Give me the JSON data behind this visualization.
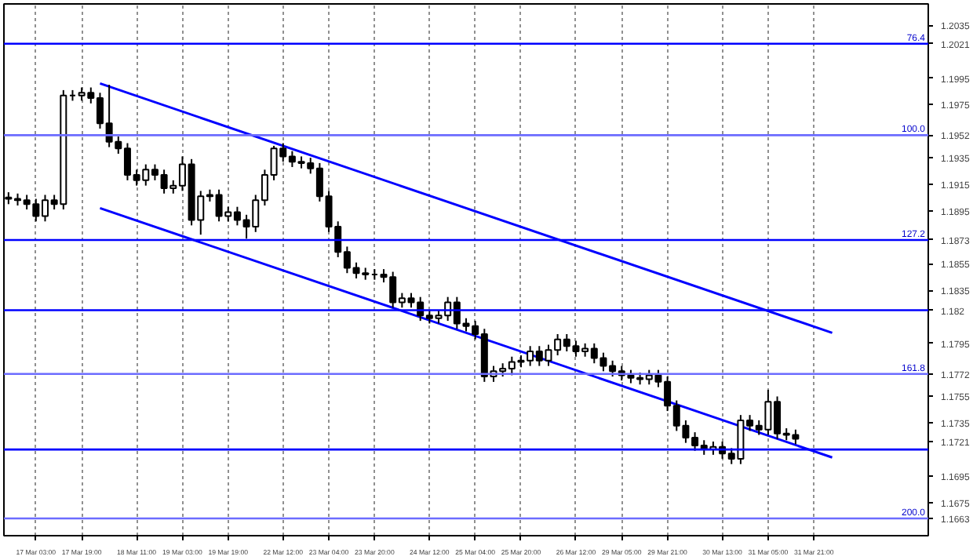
{
  "chart_data": {
    "type": "candlestick",
    "color": "#000000",
    "categories": [
      null,
      null,
      null,
      "17 Mar 03:00",
      null,
      null,
      null,
      null,
      "17 Mar 19:00",
      null,
      null,
      null,
      null,
      null,
      "18 Mar 11:00",
      null,
      null,
      null,
      null,
      "19 Mar 03:00",
      null,
      null,
      null,
      null,
      "19 Mar 19:00",
      null,
      null,
      null,
      null,
      null,
      "22 Mar 12:00",
      null,
      null,
      null,
      null,
      "23 Mar 04:00",
      null,
      null,
      null,
      null,
      "23 Mar 20:00",
      null,
      null,
      null,
      null,
      null,
      "24 Mar 12:00",
      null,
      null,
      null,
      null,
      "25 Mar 04:00",
      null,
      null,
      null,
      null,
      "25 Mar 20:00",
      null,
      null,
      null,
      null,
      null,
      "26 Mar 12:00",
      null,
      null,
      null,
      null,
      "29 Mar 05:00",
      null,
      null,
      null,
      null,
      "29 Mar 21:00",
      null,
      null,
      null,
      null,
      null,
      "30 Mar 13:00",
      null,
      null,
      null,
      null,
      "31 Mar 05:00",
      null,
      null,
      null,
      null,
      "31 Mar 21:00",
      null,
      null,
      null,
      null,
      null,
      null,
      null,
      null,
      null,
      null,
      null,
      null
    ],
    "ohlc": [
      [
        1.1905,
        1.1909,
        1.19,
        1.1904
      ],
      [
        1.1904,
        1.1908,
        1.1899,
        1.1903
      ],
      [
        1.1903,
        1.1907,
        1.1896,
        1.19
      ],
      [
        1.19,
        1.1904,
        1.1887,
        1.1891
      ],
      [
        1.1891,
        1.1907,
        1.1887,
        1.1903
      ],
      [
        1.1903,
        1.1907,
        1.1896,
        1.19
      ],
      [
        1.19,
        1.1986,
        1.1896,
        1.1982
      ],
      [
        1.1982,
        1.1986,
        1.1978,
        1.1982
      ],
      [
        1.1982,
        1.1988,
        1.1978,
        1.1984
      ],
      [
        1.1984,
        1.1988,
        1.1976,
        1.198
      ],
      [
        1.198,
        1.1984,
        1.1957,
        1.1961
      ],
      [
        1.1961,
        1.199,
        1.1943,
        1.1947
      ],
      [
        1.1947,
        1.1951,
        1.1938,
        1.1942
      ],
      [
        1.1942,
        1.1946,
        1.1918,
        1.1922
      ],
      [
        1.1922,
        1.1926,
        1.1914,
        1.1918
      ],
      [
        1.1918,
        1.193,
        1.1914,
        1.1926
      ],
      [
        1.1926,
        1.193,
        1.1918,
        1.1922
      ],
      [
        1.1922,
        1.1926,
        1.1908,
        1.1912
      ],
      [
        1.1912,
        1.1918,
        1.1908,
        1.1914
      ],
      [
        1.1914,
        1.1936,
        1.191,
        1.193
      ],
      [
        1.193,
        1.1934,
        1.1884,
        1.1888
      ],
      [
        1.1888,
        1.191,
        1.1877,
        1.1906
      ],
      [
        1.1906,
        1.1911,
        1.1902,
        1.1907
      ],
      [
        1.1907,
        1.1911,
        1.1887,
        1.1891
      ],
      [
        1.1891,
        1.1898,
        1.1887,
        1.1894
      ],
      [
        1.1894,
        1.1898,
        1.1884,
        1.1888
      ],
      [
        1.1888,
        1.1892,
        1.1874,
        1.1883
      ],
      [
        1.1883,
        1.1907,
        1.1879,
        1.1903
      ],
      [
        1.1903,
        1.1926,
        1.1899,
        1.1922
      ],
      [
        1.1922,
        1.1944,
        1.1918,
        1.1942
      ],
      [
        1.1942,
        1.1946,
        1.1932,
        1.1936
      ],
      [
        1.1936,
        1.194,
        1.1928,
        1.1932
      ],
      [
        1.1932,
        1.1936,
        1.1927,
        1.1931
      ],
      [
        1.1931,
        1.1935,
        1.1923,
        1.1927
      ],
      [
        1.1927,
        1.1931,
        1.1902,
        1.1906
      ],
      [
        1.1906,
        1.191,
        1.1879,
        1.1883
      ],
      [
        1.1883,
        1.1887,
        1.186,
        1.1864
      ],
      [
        1.1864,
        1.1868,
        1.1848,
        1.1852
      ],
      [
        1.1852,
        1.1856,
        1.1844,
        1.1848
      ],
      [
        1.1848,
        1.1852,
        1.1843,
        1.1847
      ],
      [
        1.1847,
        1.1851,
        1.1843,
        1.1847
      ],
      [
        1.1847,
        1.1851,
        1.1841,
        1.1845
      ],
      [
        1.1845,
        1.1849,
        1.1822,
        1.1826
      ],
      [
        1.1826,
        1.1833,
        1.1822,
        1.1829
      ],
      [
        1.1829,
        1.1833,
        1.1822,
        1.1826
      ],
      [
        1.1826,
        1.183,
        1.1812,
        1.1816
      ],
      [
        1.1816,
        1.182,
        1.181,
        1.1814
      ],
      [
        1.1814,
        1.182,
        1.181,
        1.1816
      ],
      [
        1.1816,
        1.183,
        1.1812,
        1.1826
      ],
      [
        1.1826,
        1.183,
        1.1806,
        1.181
      ],
      [
        1.181,
        1.1814,
        1.1804,
        1.1808
      ],
      [
        1.1808,
        1.1812,
        1.1798,
        1.1802
      ],
      [
        1.1802,
        1.1806,
        1.1766,
        1.177
      ],
      [
        1.177,
        1.1778,
        1.1766,
        1.1774
      ],
      [
        1.1774,
        1.178,
        1.177,
        1.1776
      ],
      [
        1.1776,
        1.1785,
        1.1771,
        1.1781
      ],
      [
        1.1781,
        1.1786,
        1.1777,
        1.1782
      ],
      [
        1.1782,
        1.1793,
        1.1778,
        1.1789
      ],
      [
        1.1789,
        1.1793,
        1.1778,
        1.1782
      ],
      [
        1.1782,
        1.1794,
        1.1778,
        1.179
      ],
      [
        1.179,
        1.1802,
        1.1786,
        1.1798
      ],
      [
        1.1798,
        1.1802,
        1.1789,
        1.1793
      ],
      [
        1.1793,
        1.1797,
        1.1785,
        1.1789
      ],
      [
        1.1789,
        1.1795,
        1.1785,
        1.1791
      ],
      [
        1.1791,
        1.1795,
        1.178,
        1.1784
      ],
      [
        1.1784,
        1.1788,
        1.1774,
        1.1778
      ],
      [
        1.1778,
        1.1782,
        1.177,
        1.1774
      ],
      [
        1.1774,
        1.1778,
        1.1767,
        1.1771
      ],
      [
        1.1771,
        1.1775,
        1.1765,
        1.1769
      ],
      [
        1.1769,
        1.1773,
        1.1764,
        1.1768
      ],
      [
        1.1768,
        1.1775,
        1.1764,
        1.1771
      ],
      [
        1.1771,
        1.1775,
        1.1762,
        1.1766
      ],
      [
        1.1766,
        1.177,
        1.1744,
        1.1748
      ],
      [
        1.1748,
        1.1752,
        1.1729,
        1.1733
      ],
      [
        1.1733,
        1.1737,
        1.172,
        1.1724
      ],
      [
        1.1724,
        1.1728,
        1.1714,
        1.1718
      ],
      [
        1.1718,
        1.1722,
        1.1711,
        1.1715
      ],
      [
        1.1715,
        1.1721,
        1.1711,
        1.1717
      ],
      [
        1.1717,
        1.1721,
        1.1708,
        1.1712
      ],
      [
        1.1712,
        1.1716,
        1.1704,
        1.1708
      ],
      [
        1.1708,
        1.1741,
        1.1704,
        1.1737
      ],
      [
        1.1737,
        1.1741,
        1.1729,
        1.1733
      ],
      [
        1.1733,
        1.1737,
        1.1726,
        1.173
      ],
      [
        1.173,
        1.176,
        1.1726,
        1.1751
      ],
      [
        1.1751,
        1.1755,
        1.1723,
        1.1727
      ],
      [
        1.1727,
        1.1731,
        1.1722,
        1.1726
      ],
      [
        1.1726,
        1.173,
        1.1719,
        1.1723
      ],
      null,
      null,
      null,
      null,
      null,
      null,
      null,
      null,
      null,
      null,
      null,
      null,
      null,
      null
    ],
    "series": [
      {
        "type": "line",
        "color": "#0000ff",
        "values": [
          null,
          null,
          null,
          null,
          null,
          null,
          null,
          null,
          null,
          null,
          1.1991,
          null,
          null,
          null,
          null,
          null,
          null,
          null,
          null,
          null,
          null,
          null,
          null,
          null,
          null,
          null,
          null,
          null,
          null,
          null,
          null,
          null,
          null,
          null,
          null,
          null,
          null,
          null,
          null,
          null,
          null,
          null,
          null,
          null,
          null,
          null,
          null,
          null,
          null,
          null,
          null,
          null,
          null,
          null,
          null,
          null,
          null,
          null,
          null,
          null,
          null,
          null,
          null,
          null,
          null,
          null,
          null,
          null,
          null,
          null,
          null,
          null,
          null,
          null,
          null,
          null,
          null,
          null,
          null,
          null,
          null,
          null,
          null,
          null,
          null,
          null,
          null,
          null,
          null,
          null,
          1.1803,
          null,
          null,
          null,
          null,
          null,
          null,
          null,
          null,
          null,
          null
        ]
      },
      {
        "type": "line",
        "color": "#0000ff",
        "values": [
          null,
          null,
          null,
          null,
          null,
          null,
          null,
          null,
          null,
          null,
          1.1897,
          null,
          null,
          null,
          null,
          null,
          null,
          null,
          null,
          null,
          null,
          null,
          null,
          null,
          null,
          null,
          null,
          null,
          null,
          null,
          null,
          null,
          null,
          null,
          null,
          null,
          null,
          null,
          null,
          null,
          null,
          null,
          null,
          null,
          null,
          null,
          null,
          null,
          null,
          null,
          null,
          null,
          null,
          null,
          null,
          null,
          null,
          null,
          null,
          null,
          null,
          null,
          null,
          null,
          null,
          null,
          null,
          null,
          null,
          null,
          null,
          null,
          null,
          null,
          null,
          null,
          null,
          null,
          null,
          null,
          null,
          null,
          null,
          null,
          null,
          null,
          null,
          null,
          null,
          null,
          1.1709,
          null,
          null,
          null,
          null,
          null,
          null,
          null,
          null,
          null,
          null
        ]
      }
    ],
    "ref_lines": [
      {
        "axis": "y",
        "value": 1.2021,
        "color": "#0000ff"
      },
      {
        "axis": "y",
        "value": 1.1952,
        "color": "#6c6cff"
      },
      {
        "axis": "y",
        "value": 1.1873,
        "color": "#0000ff"
      },
      {
        "axis": "y",
        "value": 1.182,
        "color": "#0000ff"
      },
      {
        "axis": "y",
        "value": 1.1772,
        "color": "#6c6cff"
      },
      {
        "axis": "y",
        "value": 1.1715,
        "color": "#0000ff"
      },
      {
        "axis": "y",
        "value": 1.1663,
        "color": "#6c6cff"
      }
    ],
    "annotations": [
      {
        "text": "76.4",
        "y": 1.2021
      },
      {
        "text": "100.0",
        "y": 1.1952
      },
      {
        "text": "127.2",
        "y": 1.1873
      },
      {
        "text": "161.8",
        "y": 1.1772
      },
      {
        "text": "200.0",
        "y": 1.1663
      }
    ],
    "ylim": [
      1.165,
      1.2051
    ],
    "yticks": [
      1.2035,
      1.2021,
      1.1995,
      1.1975,
      1.1952,
      1.1935,
      1.1915,
      1.1895,
      1.1873,
      1.1855,
      1.1835,
      1.182,
      1.1795,
      1.1772,
      1.1755,
      1.1735,
      1.1721,
      1.1695,
      1.1675,
      1.1663
    ],
    "grid": "x"
  }
}
